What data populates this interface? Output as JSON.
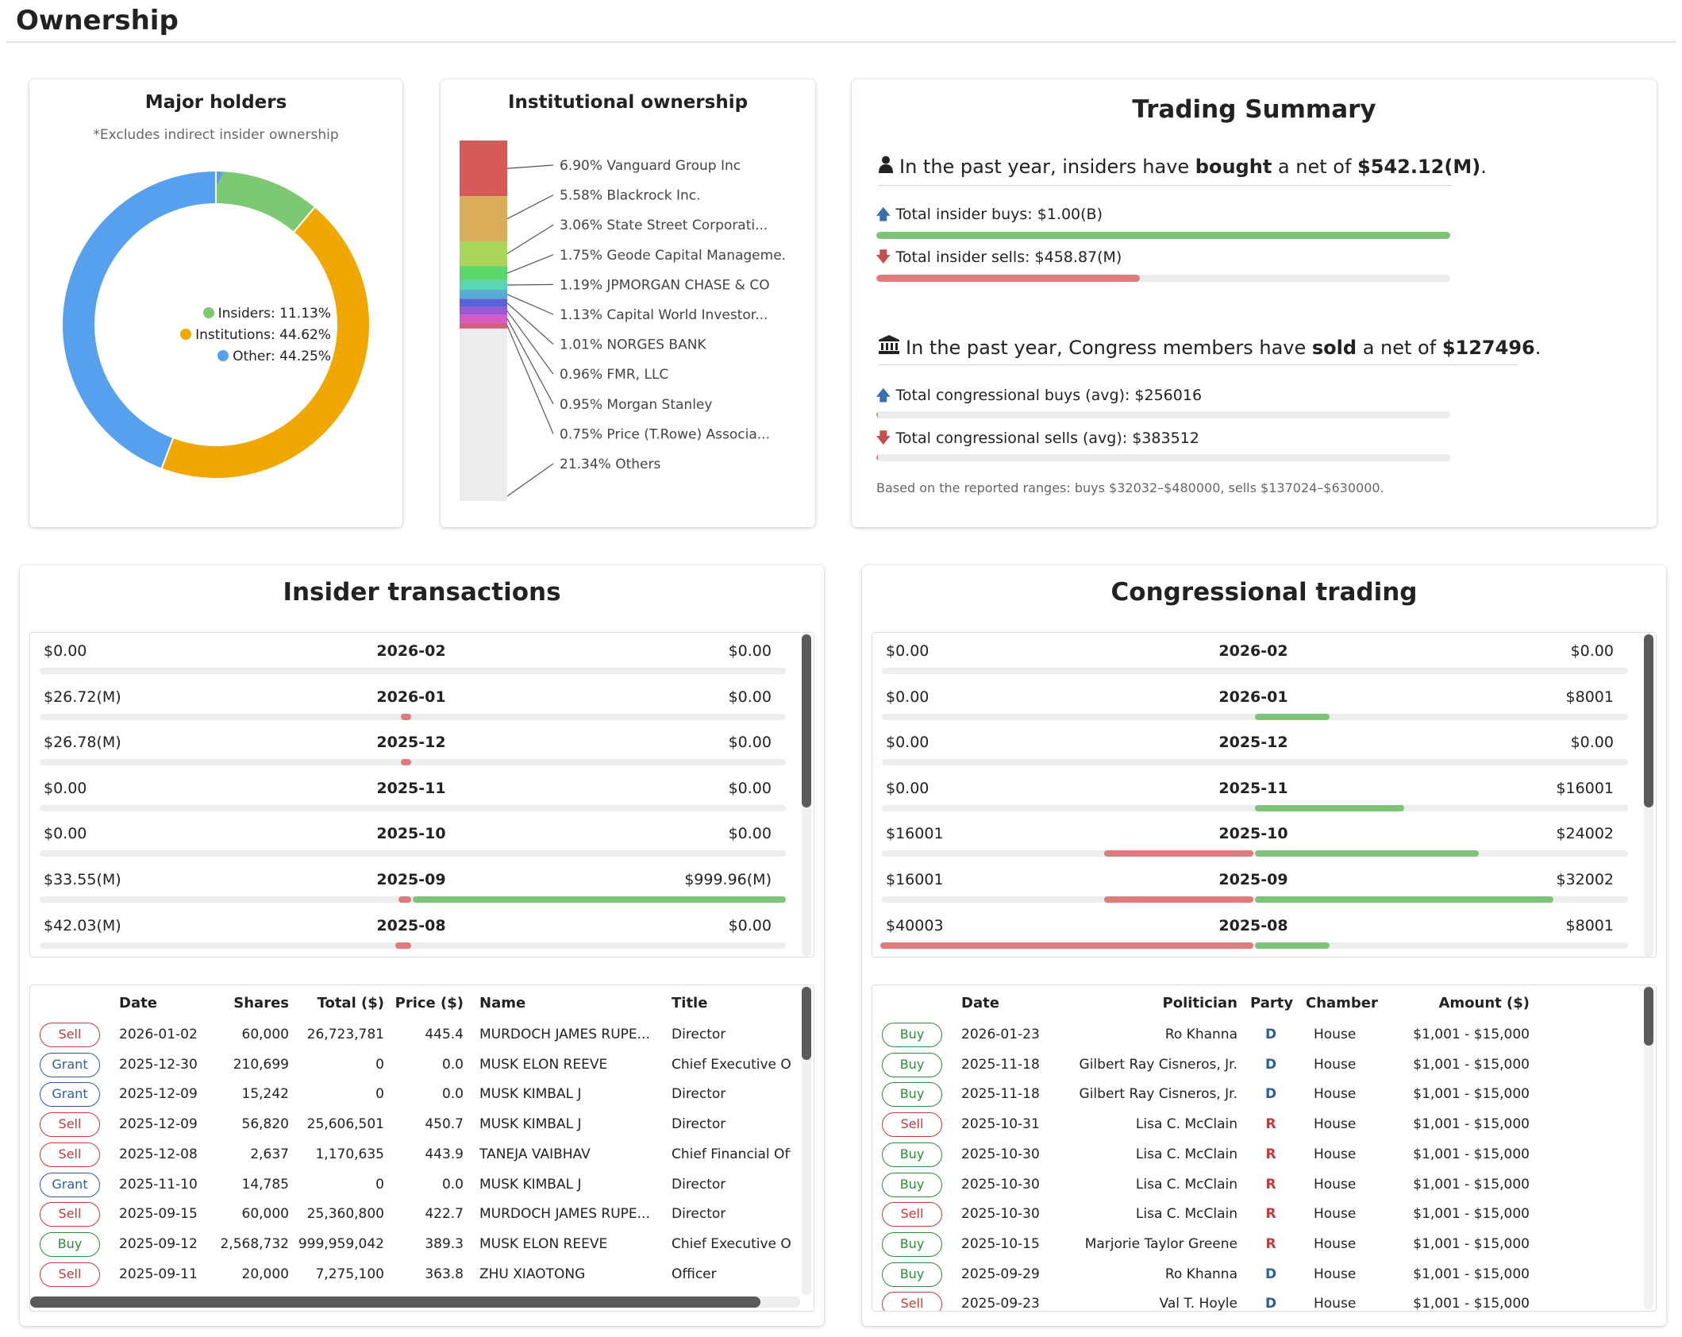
{
  "page": {
    "title": "Ownership"
  },
  "major_holders": {
    "title": "Major holders",
    "note": "*Excludes indirect insider ownership",
    "legend": [
      {
        "label": "Insiders: 11.13%",
        "value": 11.13,
        "color": "#7dc873"
      },
      {
        "label": "Institutions: 44.62%",
        "value": 44.62,
        "color": "#f0a800"
      },
      {
        "label": "Other: 44.25%",
        "value": 44.25,
        "color": "#57a0ee"
      }
    ]
  },
  "institutional": {
    "title": "Institutional ownership",
    "holders": [
      {
        "label": "6.90% Vanguard Group Inc",
        "pct": 6.9,
        "color": "#d75a5a"
      },
      {
        "label": "5.58% Blackrock Inc.",
        "pct": 5.58,
        "color": "#d9ad5a"
      },
      {
        "label": "3.06% State Street Corporati...",
        "pct": 3.06,
        "color": "#a9d65a"
      },
      {
        "label": "1.75% Geode Capital Manageme.",
        "pct": 1.75,
        "color": "#5ad66a"
      },
      {
        "label": "1.19% JPMORGAN CHASE & CO",
        "pct": 1.19,
        "color": "#5ad6b4"
      },
      {
        "label": "1.13% Capital World Investor...",
        "pct": 1.13,
        "color": "#5aaad6"
      },
      {
        "label": "1.01% NORGES BANK",
        "pct": 1.01,
        "color": "#5a62d6"
      },
      {
        "label": "0.96% FMR, LLC",
        "pct": 0.96,
        "color": "#9a5ad6"
      },
      {
        "label": "0.95% Morgan Stanley",
        "pct": 0.95,
        "color": "#d65ac8"
      },
      {
        "label": "0.75% Price (T.Rowe) Associa...",
        "pct": 0.75,
        "color": "#d65a86"
      },
      {
        "label": "21.34% Others",
        "pct": 21.34,
        "color": "#ececec"
      }
    ]
  },
  "summary": {
    "title": "Trading Summary",
    "insider_pre": "In the past year, insiders have ",
    "insider_verb": "bought",
    "insider_mid": " a net of ",
    "insider_amount": "$542.12(M)",
    "insider_end": ".",
    "insider_buys_label": "Total insider buys: $1.00(B)",
    "insider_buys_fraction": 1.0,
    "insider_sells_label": "Total insider sells: $458.87(M)",
    "insider_sells_fraction": 0.459,
    "congress_pre": "In the past year, Congress members have ",
    "congress_verb": "sold",
    "congress_mid": " a net of ",
    "congress_amount": "$127496",
    "congress_end": ".",
    "congress_buys_label": "Total congressional buys (avg): $256016",
    "congress_buys_fraction": 0.003,
    "congress_sells_label": "Total congressional sells (avg): $383512",
    "congress_sells_fraction": 0.003,
    "footnote": "Based on the reported ranges: buys $32032–$480000, sells $137024–$630000."
  },
  "insider_transactions": {
    "title": "Insider transactions",
    "months": [
      {
        "left": "$0.00",
        "date": "2026-02",
        "right": "$0.00",
        "sell_frac": 0,
        "buy_frac": 0
      },
      {
        "left": "$26.72(M)",
        "date": "2026-01",
        "right": "$0.00",
        "sell_frac": 0.027,
        "buy_frac": 0
      },
      {
        "left": "$26.78(M)",
        "date": "2025-12",
        "right": "$0.00",
        "sell_frac": 0.027,
        "buy_frac": 0
      },
      {
        "left": "$0.00",
        "date": "2025-11",
        "right": "$0.00",
        "sell_frac": 0,
        "buy_frac": 0
      },
      {
        "left": "$0.00",
        "date": "2025-10",
        "right": "$0.00",
        "sell_frac": 0,
        "buy_frac": 0
      },
      {
        "left": "$33.55(M)",
        "date": "2025-09",
        "right": "$999.96(M)",
        "sell_frac": 0.034,
        "buy_frac": 1.0
      },
      {
        "left": "$42.03(M)",
        "date": "2025-08",
        "right": "$0.00",
        "sell_frac": 0.042,
        "buy_frac": 0
      }
    ],
    "headers": {
      "date": "Date",
      "shares": "Shares",
      "total": "Total ($)",
      "price": "Price ($)",
      "name": "Name",
      "title": "Title"
    },
    "rows": [
      {
        "type": "Sell",
        "date": "2026-01-02",
        "shares": "60,000",
        "total": "26,723,781",
        "price": "445.4",
        "name": "MURDOCH JAMES RUPE...",
        "title": "Director"
      },
      {
        "type": "Grant",
        "date": "2025-12-30",
        "shares": "210,699",
        "total": "0",
        "price": "0.0",
        "name": "MUSK ELON REEVE",
        "title": "Chief Executive Of"
      },
      {
        "type": "Grant",
        "date": "2025-12-09",
        "shares": "15,242",
        "total": "0",
        "price": "0.0",
        "name": "MUSK KIMBAL J",
        "title": "Director"
      },
      {
        "type": "Sell",
        "date": "2025-12-09",
        "shares": "56,820",
        "total": "25,606,501",
        "price": "450.7",
        "name": "MUSK KIMBAL J",
        "title": "Director"
      },
      {
        "type": "Sell",
        "date": "2025-12-08",
        "shares": "2,637",
        "total": "1,170,635",
        "price": "443.9",
        "name": "TANEJA VAIBHAV",
        "title": "Chief Financial Off"
      },
      {
        "type": "Grant",
        "date": "2025-11-10",
        "shares": "14,785",
        "total": "0",
        "price": "0.0",
        "name": "MUSK KIMBAL J",
        "title": "Director"
      },
      {
        "type": "Sell",
        "date": "2025-09-15",
        "shares": "60,000",
        "total": "25,360,800",
        "price": "422.7",
        "name": "MURDOCH JAMES RUPE...",
        "title": "Director"
      },
      {
        "type": "Buy",
        "date": "2025-09-12",
        "shares": "2,568,732",
        "total": "999,959,042",
        "price": "389.3",
        "name": "MUSK ELON REEVE",
        "title": "Chief Executive Of"
      },
      {
        "type": "Sell",
        "date": "2025-09-11",
        "shares": "20,000",
        "total": "7,275,100",
        "price": "363.8",
        "name": "ZHU XIAOTONG",
        "title": "Officer"
      }
    ]
  },
  "congressional_trading": {
    "title": "Congressional trading",
    "months": [
      {
        "left": "$0.00",
        "date": "2026-02",
        "right": "$0.00",
        "sell_frac": 0,
        "buy_frac": 0
      },
      {
        "left": "$0.00",
        "date": "2026-01",
        "right": "$8001",
        "sell_frac": 0,
        "buy_frac": 0.2
      },
      {
        "left": "$0.00",
        "date": "2025-12",
        "right": "$0.00",
        "sell_frac": 0,
        "buy_frac": 0
      },
      {
        "left": "$0.00",
        "date": "2025-11",
        "right": "$16001",
        "sell_frac": 0,
        "buy_frac": 0.4
      },
      {
        "left": "$16001",
        "date": "2025-10",
        "right": "$24002",
        "sell_frac": 0.4,
        "buy_frac": 0.6
      },
      {
        "left": "$16001",
        "date": "2025-09",
        "right": "$32002",
        "sell_frac": 0.4,
        "buy_frac": 0.8
      },
      {
        "left": "$40003",
        "date": "2025-08",
        "right": "$8001",
        "sell_frac": 1.0,
        "buy_frac": 0.2
      }
    ],
    "headers": {
      "date": "Date",
      "politician": "Politician",
      "party": "Party",
      "chamber": "Chamber",
      "amount": "Amount ($)"
    },
    "rows": [
      {
        "type": "Buy",
        "date": "2026-01-23",
        "politician": "Ro Khanna",
        "party": "D",
        "chamber": "House",
        "amount": "$1,001 - $15,000"
      },
      {
        "type": "Buy",
        "date": "2025-11-18",
        "politician": "Gilbert Ray Cisneros, Jr.",
        "party": "D",
        "chamber": "House",
        "amount": "$1,001 - $15,000"
      },
      {
        "type": "Buy",
        "date": "2025-11-18",
        "politician": "Gilbert Ray Cisneros, Jr.",
        "party": "D",
        "chamber": "House",
        "amount": "$1,001 - $15,000"
      },
      {
        "type": "Sell",
        "date": "2025-10-31",
        "politician": "Lisa C. McClain",
        "party": "R",
        "chamber": "House",
        "amount": "$1,001 - $15,000"
      },
      {
        "type": "Buy",
        "date": "2025-10-30",
        "politician": "Lisa C. McClain",
        "party": "R",
        "chamber": "House",
        "amount": "$1,001 - $15,000"
      },
      {
        "type": "Buy",
        "date": "2025-10-30",
        "politician": "Lisa C. McClain",
        "party": "R",
        "chamber": "House",
        "amount": "$1,001 - $15,000"
      },
      {
        "type": "Sell",
        "date": "2025-10-30",
        "politician": "Lisa C. McClain",
        "party": "R",
        "chamber": "House",
        "amount": "$1,001 - $15,000"
      },
      {
        "type": "Buy",
        "date": "2025-10-15",
        "politician": "Marjorie Taylor Greene",
        "party": "R",
        "chamber": "House",
        "amount": "$1,001 - $15,000"
      },
      {
        "type": "Buy",
        "date": "2025-09-29",
        "politician": "Ro Khanna",
        "party": "D",
        "chamber": "House",
        "amount": "$1,001 - $15,000"
      },
      {
        "type": "Sell",
        "date": "2025-09-23",
        "politician": "Val T. Hoyle",
        "party": "D",
        "chamber": "House",
        "amount": "$1,001 - $15,000"
      }
    ]
  },
  "colors": {
    "buy": "#7dc478",
    "sell": "#e07b7b",
    "democrat": "#2f5d9a",
    "republican": "#c23b3b"
  }
}
